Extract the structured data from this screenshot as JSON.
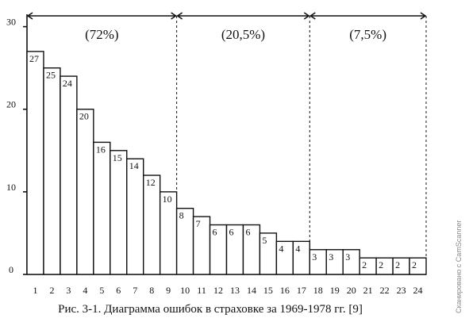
{
  "chart_data": {
    "type": "bar",
    "categories": [
      "1",
      "2",
      "3",
      "4",
      "5",
      "6",
      "7",
      "8",
      "9",
      "10",
      "11",
      "12",
      "13",
      "14",
      "15",
      "16",
      "17",
      "18",
      "19",
      "20",
      "21",
      "22",
      "23",
      "24"
    ],
    "values": [
      27,
      25,
      24,
      20,
      16,
      15,
      14,
      12,
      10,
      8,
      7,
      6,
      6,
      6,
      5,
      4,
      4,
      3,
      3,
      3,
      2,
      2,
      2,
      2
    ],
    "data_labels": [
      "27",
      "25",
      "24",
      "20",
      "16",
      "15",
      "14",
      "12",
      "10",
      "8",
      "7",
      "6",
      "6",
      "6",
      "5",
      "4",
      "4",
      "3",
      "3",
      "3",
      "2",
      "2",
      "2",
      "2"
    ],
    "y_ticks": [
      "0",
      "10",
      "20",
      "30"
    ],
    "ylim": [
      0,
      31.5
    ],
    "groups": [
      {
        "label": "(72%)",
        "from": 1,
        "to": 9
      },
      {
        "label": "(20,5%)",
        "from": 10,
        "to": 17
      },
      {
        "label": "(7,5%)",
        "from": 18,
        "to": 24
      }
    ],
    "title": "Рис. 3-1. Диаграмма ошибок в страховке за 1969-1978 гг. [9]",
    "grid": false
  },
  "watermark": "Сканировано с CamScanner",
  "colors": {
    "ink": "#111111",
    "background": "#ffffff"
  }
}
